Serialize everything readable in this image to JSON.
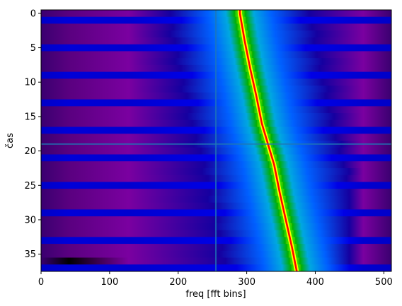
{
  "chart_data": {
    "type": "heatmap",
    "title": "",
    "xlabel": "freq [fft bins]",
    "ylabel": "čas",
    "xlim": [
      0,
      511
    ],
    "ylim": [
      37.5,
      -0.5
    ],
    "x_ticks": [
      0,
      100,
      200,
      300,
      400,
      500
    ],
    "y_ticks": [
      0,
      5,
      10,
      15,
      20,
      25,
      30,
      35
    ],
    "grid": false,
    "legend": "none",
    "colormap": "nipy_spectral",
    "crosshair": {
      "x": 255,
      "y": 19,
      "color": "#1f77b4"
    },
    "tone_track": {
      "description_points_x": [
        290,
        297,
        305,
        314,
        322,
        331,
        340,
        348,
        357,
        366,
        373
      ],
      "description_points_y": [
        0,
        4,
        8,
        12,
        16,
        19,
        22,
        26,
        30,
        34,
        37.5
      ]
    },
    "frame_rows": 38,
    "bright_bands_period": 4
  }
}
